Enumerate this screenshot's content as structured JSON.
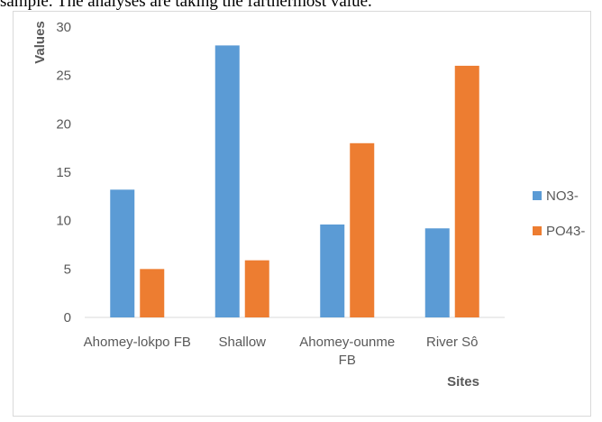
{
  "top_text": "sample. The analyses are taking the farthermost value.",
  "chart_data": {
    "type": "bar",
    "categories": [
      "Ahomey-lokpo FB",
      "Shallow",
      "Ahomey-ounme FB",
      "River Sô"
    ],
    "category_lines": [
      [
        "Ahomey-lokpo FB"
      ],
      [
        "Shallow"
      ],
      [
        "Ahomey-ounme",
        "FB"
      ],
      [
        "River Sô"
      ]
    ],
    "series": [
      {
        "name": "NO3-",
        "values": [
          13.2,
          28.1,
          9.6,
          9.2
        ],
        "color": "#5b9bd5"
      },
      {
        "name": "PO43-",
        "values": [
          5.0,
          5.9,
          18.0,
          26.0
        ],
        "color": "#ed7d31"
      }
    ],
    "xlabel": "Sites",
    "ylabel": "Values",
    "ylim": [
      0,
      30
    ],
    "yticks": [
      0,
      5,
      10,
      15,
      20,
      25,
      30
    ],
    "grid": false,
    "legend": "right"
  }
}
